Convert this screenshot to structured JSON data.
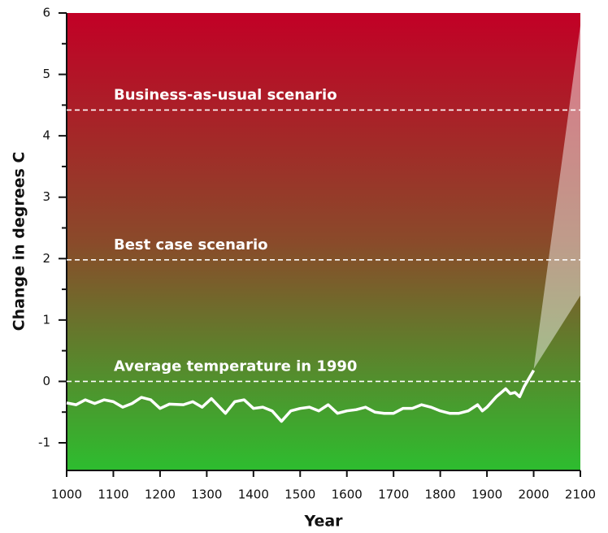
{
  "chart_data": {
    "type": "line",
    "x_label": "Year",
    "y_label": "Change in degrees C",
    "xlim": [
      1000,
      2100
    ],
    "xticks": [
      1000,
      1100,
      1200,
      1300,
      1400,
      1500,
      1600,
      1700,
      1800,
      1900,
      2000,
      2100
    ],
    "ylim": [
      -1.45,
      6
    ],
    "yticks": [
      -1,
      0,
      1,
      2,
      3,
      4,
      5,
      6
    ],
    "yminorticks": [
      -0.5,
      0.5,
      1.5,
      2.5,
      3.5,
      4.5,
      5.5
    ],
    "annotations": [
      {
        "text": "Business-as-usual scenario",
        "y": 4.42
      },
      {
        "text": "Best case scenario",
        "y": 1.98
      },
      {
        "text": "Average temperature in 1990",
        "y": 0
      }
    ],
    "series": [
      {
        "color": "#ffffff",
        "x": [
          1000,
          1020,
          1040,
          1060,
          1080,
          1100,
          1120,
          1140,
          1160,
          1180,
          1200,
          1220,
          1250,
          1270,
          1290,
          1310,
          1340,
          1360,
          1380,
          1400,
          1420,
          1440,
          1460,
          1480,
          1500,
          1520,
          1540,
          1560,
          1580,
          1600,
          1620,
          1640,
          1660,
          1680,
          1700,
          1720,
          1740,
          1760,
          1780,
          1800,
          1820,
          1840,
          1860,
          1880,
          1890,
          1900,
          1920,
          1940,
          1950,
          1960,
          1970,
          1980,
          2000
        ],
        "values": [
          -0.35,
          -0.38,
          -0.3,
          -0.36,
          -0.3,
          -0.33,
          -0.42,
          -0.36,
          -0.26,
          -0.3,
          -0.44,
          -0.37,
          -0.38,
          -0.33,
          -0.42,
          -0.28,
          -0.52,
          -0.33,
          -0.3,
          -0.44,
          -0.42,
          -0.48,
          -0.65,
          -0.48,
          -0.44,
          -0.42,
          -0.48,
          -0.38,
          -0.52,
          -0.48,
          -0.46,
          -0.42,
          -0.5,
          -0.52,
          -0.52,
          -0.44,
          -0.44,
          -0.38,
          -0.42,
          -0.48,
          -0.52,
          -0.52,
          -0.48,
          -0.38,
          -0.48,
          -0.42,
          -0.25,
          -0.12,
          -0.2,
          -0.18,
          -0.25,
          -0.08,
          0.18
        ]
      }
    ],
    "projection": {
      "x": [
        2000,
        2100
      ],
      "lower": [
        0.2,
        1.4
      ],
      "upper": [
        0.2,
        5.8
      ]
    }
  }
}
